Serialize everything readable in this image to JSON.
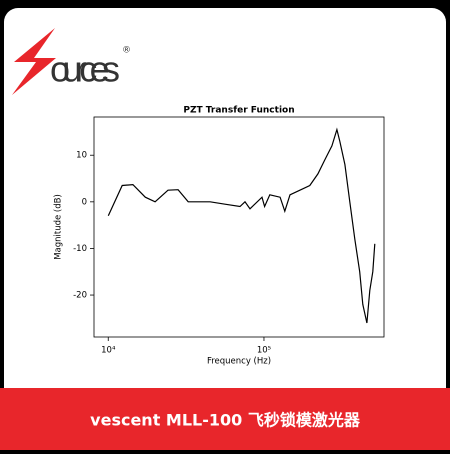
{
  "logo": {
    "text": "ources",
    "mark": "®"
  },
  "banner": "vescent MLL-100 飞秒锁模激光器",
  "chart_data": {
    "type": "line",
    "title": "PZT Transfer Function",
    "x_label": "Frequency (Hz)",
    "y_label": "Magnitude (dB)",
    "xscale": "log",
    "xlim": [
      8100,
      590000
    ],
    "ylim": [
      -29,
      18.2
    ],
    "xticks": [
      {
        "value": 10000,
        "label": "10⁴"
      },
      {
        "value": 100000,
        "label": "10⁵"
      }
    ],
    "yticks": [
      -20,
      -10,
      0,
      10
    ],
    "grid": false,
    "x": [
      10000,
      12300,
      14400,
      17300,
      20000,
      24200,
      28100,
      32600,
      45100,
      56200,
      70200,
      75500,
      81300,
      97100,
      101000,
      109000,
      127000,
      136000,
      147000,
      170000,
      197000,
      222000,
      246000,
      273000,
      294000,
      307000,
      331000,
      356000,
      383000,
      412000,
      431000,
      458000,
      478000,
      500000,
      515000
    ],
    "series": [
      {
        "color": "#000000",
        "values": [
          -3,
          3.5,
          3.7,
          1,
          0,
          2.5,
          2.6,
          0,
          0,
          -0.5,
          -1,
          0,
          -1.5,
          1,
          -1,
          1.5,
          1,
          -2,
          1.5,
          2.5,
          3.5,
          6,
          9,
          12,
          15.5,
          13,
          8,
          0,
          -8,
          -15,
          -22,
          -26,
          -19,
          -15,
          -9
        ]
      }
    ]
  }
}
